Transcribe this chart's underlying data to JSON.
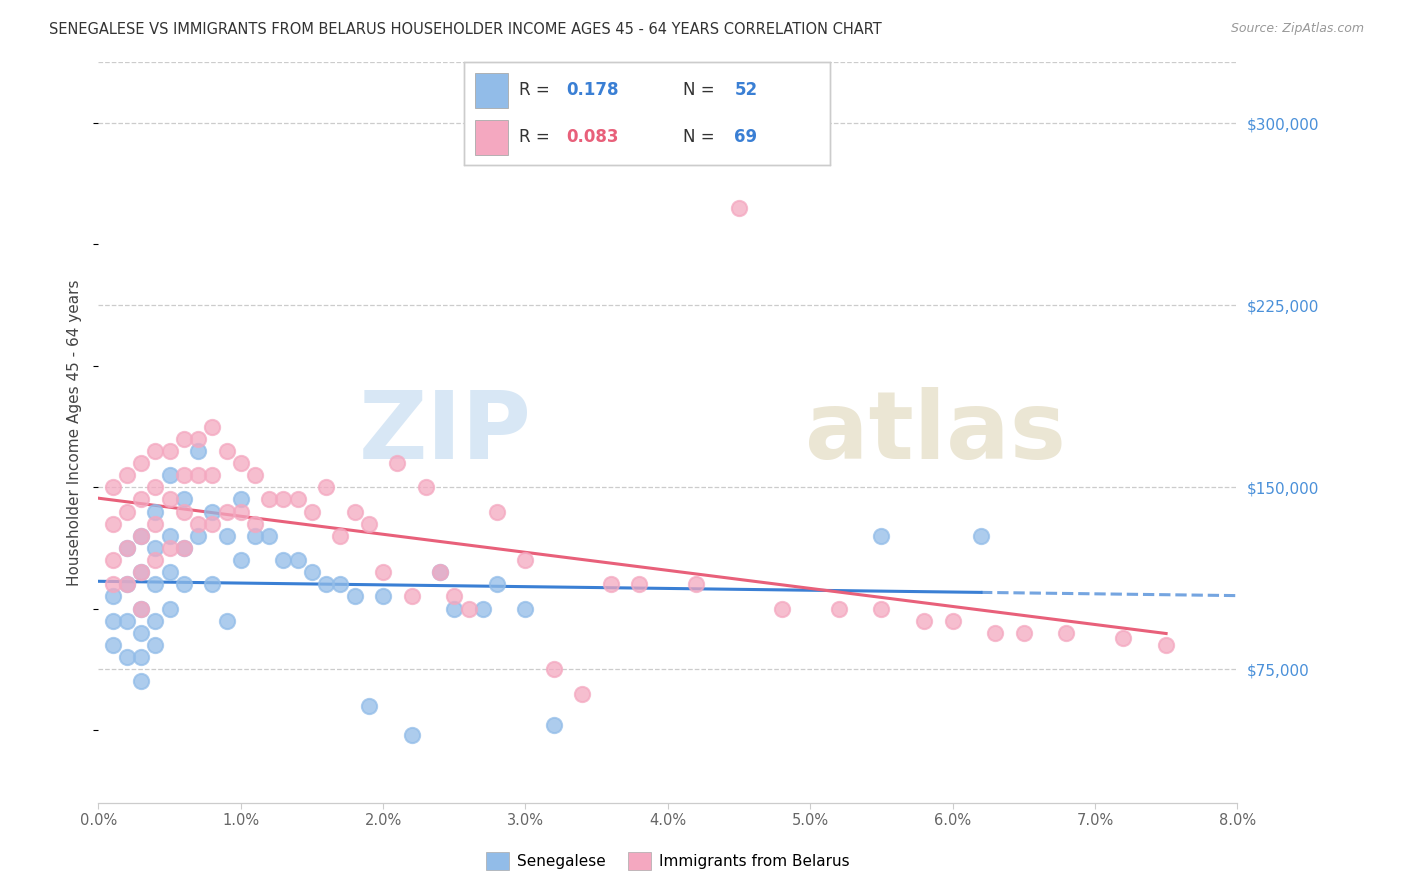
{
  "title": "SENEGALESE VS IMMIGRANTS FROM BELARUS HOUSEHOLDER INCOME AGES 45 - 64 YEARS CORRELATION CHART",
  "source": "Source: ZipAtlas.com",
  "ylabel": "Householder Income Ages 45 - 64 years",
  "xmin": 0.0,
  "xmax": 0.08,
  "ymin": 20000,
  "ymax": 325000,
  "yticks": [
    75000,
    150000,
    225000,
    300000
  ],
  "ytick_labels": [
    "$75,000",
    "$150,000",
    "$225,000",
    "$300,000"
  ],
  "legend_labels": [
    "Senegalese",
    "Immigrants from Belarus"
  ],
  "senegalese_color": "#92bce8",
  "belarus_color": "#f4a8c0",
  "senegalese_R": "0.178",
  "senegalese_N": "52",
  "belarus_R": "0.083",
  "belarus_N": "69",
  "senegalese_line_color": "#3a7fd4",
  "belarus_line_color": "#e8607a",
  "watermark_zip": "ZIP",
  "watermark_atlas": "atlas",
  "senegalese_x": [
    0.001,
    0.001,
    0.001,
    0.002,
    0.002,
    0.002,
    0.002,
    0.003,
    0.003,
    0.003,
    0.003,
    0.003,
    0.003,
    0.004,
    0.004,
    0.004,
    0.004,
    0.004,
    0.005,
    0.005,
    0.005,
    0.005,
    0.006,
    0.006,
    0.006,
    0.007,
    0.007,
    0.008,
    0.008,
    0.009,
    0.009,
    0.01,
    0.01,
    0.011,
    0.012,
    0.013,
    0.014,
    0.015,
    0.016,
    0.017,
    0.018,
    0.019,
    0.02,
    0.022,
    0.024,
    0.025,
    0.027,
    0.028,
    0.03,
    0.032,
    0.055,
    0.062
  ],
  "senegalese_y": [
    105000,
    95000,
    85000,
    125000,
    110000,
    95000,
    80000,
    130000,
    115000,
    100000,
    90000,
    80000,
    70000,
    140000,
    125000,
    110000,
    95000,
    85000,
    155000,
    130000,
    115000,
    100000,
    145000,
    125000,
    110000,
    165000,
    130000,
    140000,
    110000,
    130000,
    95000,
    145000,
    120000,
    130000,
    130000,
    120000,
    120000,
    115000,
    110000,
    110000,
    105000,
    60000,
    105000,
    48000,
    115000,
    100000,
    100000,
    110000,
    100000,
    52000,
    130000,
    130000
  ],
  "belarus_x": [
    0.001,
    0.001,
    0.001,
    0.001,
    0.002,
    0.002,
    0.002,
    0.002,
    0.003,
    0.003,
    0.003,
    0.003,
    0.003,
    0.004,
    0.004,
    0.004,
    0.004,
    0.005,
    0.005,
    0.005,
    0.006,
    0.006,
    0.006,
    0.006,
    0.007,
    0.007,
    0.007,
    0.008,
    0.008,
    0.008,
    0.009,
    0.009,
    0.01,
    0.01,
    0.011,
    0.011,
    0.012,
    0.013,
    0.014,
    0.015,
    0.016,
    0.017,
    0.018,
    0.019,
    0.02,
    0.021,
    0.022,
    0.023,
    0.024,
    0.025,
    0.026,
    0.028,
    0.03,
    0.032,
    0.034,
    0.036,
    0.038,
    0.042,
    0.045,
    0.048,
    0.052,
    0.055,
    0.058,
    0.06,
    0.063,
    0.065,
    0.068,
    0.072,
    0.075
  ],
  "belarus_y": [
    150000,
    135000,
    120000,
    110000,
    155000,
    140000,
    125000,
    110000,
    160000,
    145000,
    130000,
    115000,
    100000,
    165000,
    150000,
    135000,
    120000,
    165000,
    145000,
    125000,
    170000,
    155000,
    140000,
    125000,
    170000,
    155000,
    135000,
    175000,
    155000,
    135000,
    165000,
    140000,
    160000,
    140000,
    155000,
    135000,
    145000,
    145000,
    145000,
    140000,
    150000,
    130000,
    140000,
    135000,
    115000,
    160000,
    105000,
    150000,
    115000,
    105000,
    100000,
    140000,
    120000,
    75000,
    65000,
    110000,
    110000,
    110000,
    265000,
    100000,
    100000,
    100000,
    95000,
    95000,
    90000,
    90000,
    90000,
    88000,
    85000
  ]
}
